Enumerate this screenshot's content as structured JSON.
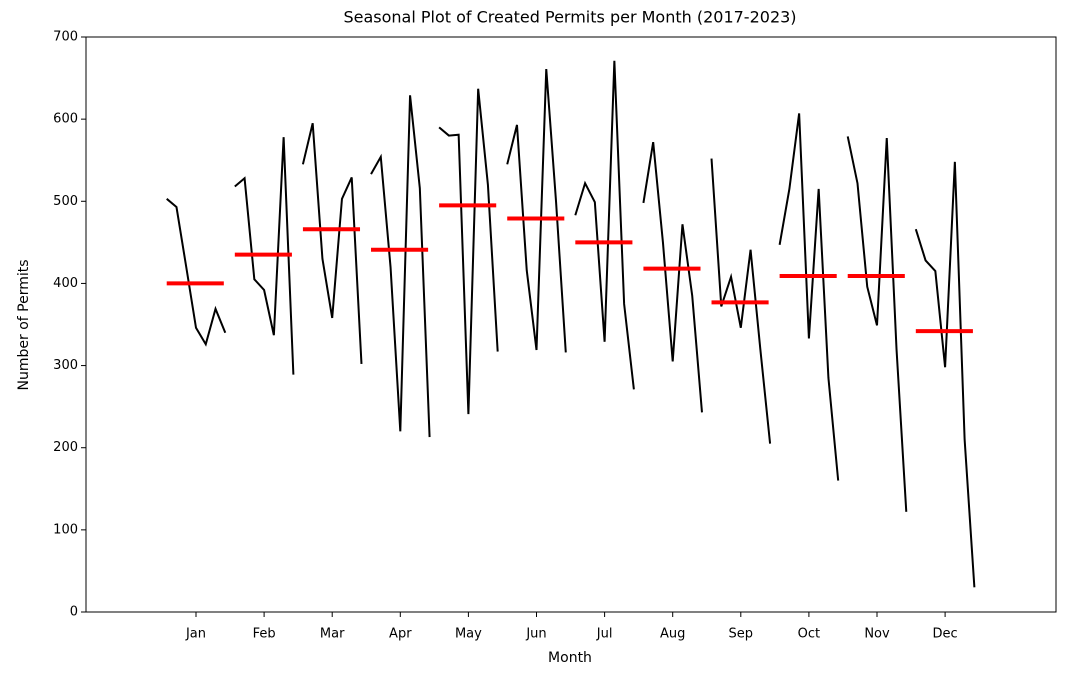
{
  "chart_data": {
    "type": "seasonal",
    "title": "Seasonal Plot of Created Permits per Month (2017-2023)",
    "x_label": "Month",
    "y_label": "Number of Permits",
    "categories": [
      "Jan",
      "Feb",
      "Mar",
      "Apr",
      "May",
      "Jun",
      "Jul",
      "Aug",
      "Sep",
      "Oct",
      "Nov",
      "Dec"
    ],
    "values": [
      [
        503,
        493,
        420,
        346,
        326,
        369,
        340
      ],
      [
        518,
        528,
        405,
        392,
        337,
        578,
        289
      ],
      [
        545,
        595,
        430,
        358,
        503,
        529,
        302
      ],
      [
        533,
        554,
        420,
        220,
        629,
        516,
        213
      ],
      [
        590,
        580,
        581,
        241,
        637,
        520,
        317
      ],
      [
        545,
        593,
        416,
        319,
        661,
        500,
        316
      ],
      [
        483,
        522,
        499,
        329,
        671,
        375,
        271
      ],
      [
        498,
        572,
        450,
        305,
        472,
        385,
        243
      ],
      [
        552,
        372,
        408,
        346,
        441,
        320,
        205
      ],
      [
        447,
        515,
        607,
        333,
        515,
        285,
        160
      ],
      [
        579,
        522,
        396,
        349,
        577,
        320,
        122
      ],
      [
        466,
        428,
        415,
        298,
        548,
        210,
        30
      ]
    ],
    "means": [
      400,
      435,
      466,
      441,
      495,
      479,
      450,
      418,
      377,
      409,
      409,
      342
    ],
    "line_color": "#000000",
    "mean_color": "#ff0000",
    "ylim": [
      0,
      700
    ],
    "yticks": [
      0,
      100,
      200,
      300,
      400,
      500,
      600,
      700
    ]
  }
}
